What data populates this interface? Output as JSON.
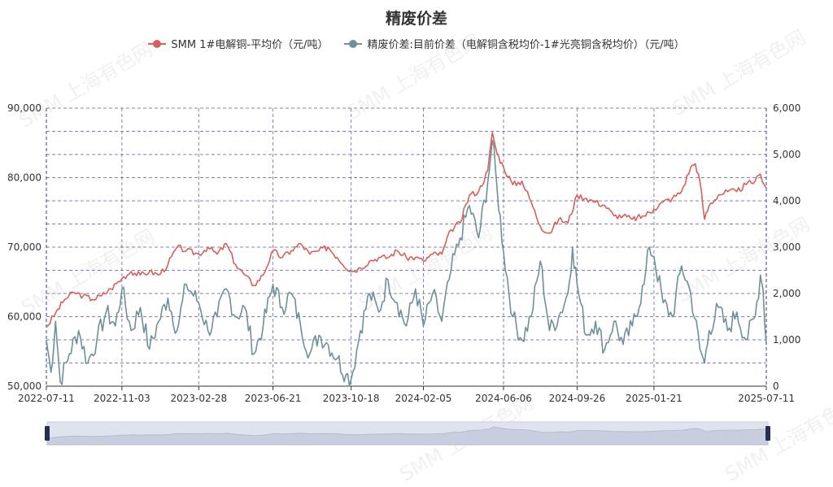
{
  "watermark": "SMM 上海有色网",
  "colors": {
    "series1": "#d85f5b",
    "series2": "#6f9098",
    "grid": "#555a8c",
    "dz_fill": "#dfe3ee",
    "dz_handle": "#26304e"
  },
  "chart_data": {
    "type": "line",
    "title": "精废价差",
    "x_labels": [
      "2022-07-11",
      "2022-11-03",
      "2023-02-28",
      "2023-06-21",
      "2023-10-18",
      "2024-02-05",
      "2024-06-06",
      "2024-09-26",
      "2025-01-21",
      "2025-07-11"
    ],
    "y_left": {
      "min": 50000,
      "max": 90000,
      "ticks": [
        "50,000",
        "60,000",
        "70,000",
        "80,000",
        "90,000"
      ]
    },
    "y_right": {
      "min": 0,
      "max": 6000,
      "ticks": [
        "0",
        "1,000",
        "2,000",
        "3,000",
        "4,000",
        "5,000",
        "6,000"
      ]
    },
    "grid": true,
    "legend_position": "top-center",
    "series": [
      {
        "name": "SMM 1#电解铜-平均价（元/吨）",
        "axis": "left",
        "points": [
          [
            "2022-07-11",
            58500
          ],
          [
            "2022-07-25",
            60500
          ],
          [
            "2022-08-08",
            62500
          ],
          [
            "2022-08-22",
            63500
          ],
          [
            "2022-09-05",
            63000
          ],
          [
            "2022-09-19",
            62500
          ],
          [
            "2022-10-03",
            63000
          ],
          [
            "2022-10-17",
            64000
          ],
          [
            "2022-11-03",
            65500
          ],
          [
            "2022-11-17",
            66500
          ],
          [
            "2022-12-01",
            66000
          ],
          [
            "2022-12-15",
            66500
          ],
          [
            "2022-12-29",
            66000
          ],
          [
            "2023-01-12",
            67500
          ],
          [
            "2023-01-26",
            70000
          ],
          [
            "2023-02-09",
            69500
          ],
          [
            "2023-02-28",
            69000
          ],
          [
            "2023-03-14",
            70000
          ],
          [
            "2023-03-28",
            69000
          ],
          [
            "2023-04-11",
            70500
          ],
          [
            "2023-04-25",
            67500
          ],
          [
            "2023-05-09",
            66000
          ],
          [
            "2023-05-23",
            64500
          ],
          [
            "2023-06-06",
            66000
          ],
          [
            "2023-06-21",
            69500
          ],
          [
            "2023-07-05",
            68500
          ],
          [
            "2023-07-19",
            69500
          ],
          [
            "2023-08-02",
            70500
          ],
          [
            "2023-08-16",
            69000
          ],
          [
            "2023-08-30",
            69500
          ],
          [
            "2023-09-13",
            70000
          ],
          [
            "2023-09-27",
            68500
          ],
          [
            "2023-10-18",
            66500
          ],
          [
            "2023-11-01",
            67000
          ],
          [
            "2023-11-15",
            68000
          ],
          [
            "2023-11-29",
            68500
          ],
          [
            "2023-12-13",
            68500
          ],
          [
            "2023-12-27",
            69500
          ],
          [
            "2024-01-10",
            68500
          ],
          [
            "2024-01-24",
            68500
          ],
          [
            "2024-02-05",
            68000
          ],
          [
            "2024-02-19",
            69000
          ],
          [
            "2024-03-04",
            69000
          ],
          [
            "2024-03-18",
            72500
          ],
          [
            "2024-04-01",
            73500
          ],
          [
            "2024-04-15",
            77500
          ],
          [
            "2024-04-29",
            78000
          ],
          [
            "2024-05-13",
            81000
          ],
          [
            "2024-05-20",
            86500
          ],
          [
            "2024-05-27",
            83500
          ],
          [
            "2024-06-06",
            81500
          ],
          [
            "2024-06-20",
            79000
          ],
          [
            "2024-07-04",
            79500
          ],
          [
            "2024-07-18",
            76500
          ],
          [
            "2024-08-01",
            73000
          ],
          [
            "2024-08-15",
            72000
          ],
          [
            "2024-08-29",
            74000
          ],
          [
            "2024-09-12",
            73500
          ],
          [
            "2024-09-26",
            77500
          ],
          [
            "2024-10-10",
            77000
          ],
          [
            "2024-10-24",
            76500
          ],
          [
            "2024-11-07",
            76000
          ],
          [
            "2024-11-21",
            74500
          ],
          [
            "2024-12-05",
            74500
          ],
          [
            "2024-12-19",
            74000
          ],
          [
            "2025-01-06",
            74500
          ],
          [
            "2025-01-21",
            75500
          ],
          [
            "2025-02-04",
            76500
          ],
          [
            "2025-02-18",
            77000
          ],
          [
            "2025-03-04",
            78000
          ],
          [
            "2025-03-18",
            81500
          ],
          [
            "2025-03-25",
            82000
          ],
          [
            "2025-04-01",
            79500
          ],
          [
            "2025-04-08",
            74000
          ],
          [
            "2025-04-15",
            76000
          ],
          [
            "2025-04-29",
            77500
          ],
          [
            "2025-05-13",
            78000
          ],
          [
            "2025-05-27",
            78000
          ],
          [
            "2025-06-10",
            79000
          ],
          [
            "2025-06-24",
            79500
          ],
          [
            "2025-07-02",
            80500
          ],
          [
            "2025-07-11",
            78500
          ]
        ]
      },
      {
        "name": "精废价差:目前价差（电解铜含税均价-1#光亮铜含税均价）（元/吨）",
        "axis": "right",
        "points": [
          [
            "2022-07-11",
            1000
          ],
          [
            "2022-07-18",
            300
          ],
          [
            "2022-07-25",
            1400
          ],
          [
            "2022-08-01",
            100
          ],
          [
            "2022-08-15",
            700
          ],
          [
            "2022-08-29",
            1200
          ],
          [
            "2022-09-12",
            500
          ],
          [
            "2022-09-26",
            1000
          ],
          [
            "2022-10-10",
            1600
          ],
          [
            "2022-10-24",
            1300
          ],
          [
            "2022-11-03",
            2100
          ],
          [
            "2022-11-17",
            1200
          ],
          [
            "2022-12-01",
            1700
          ],
          [
            "2022-12-15",
            800
          ],
          [
            "2022-12-29",
            1400
          ],
          [
            "2023-01-12",
            1900
          ],
          [
            "2023-01-26",
            1200
          ],
          [
            "2023-02-09",
            2200
          ],
          [
            "2023-02-28",
            1800
          ],
          [
            "2023-03-14",
            1200
          ],
          [
            "2023-03-28",
            1500
          ],
          [
            "2023-04-11",
            2100
          ],
          [
            "2023-04-25",
            1500
          ],
          [
            "2023-05-09",
            1700
          ],
          [
            "2023-05-23",
            700
          ],
          [
            "2023-06-06",
            1300
          ],
          [
            "2023-06-21",
            2200
          ],
          [
            "2023-07-05",
            1700
          ],
          [
            "2023-07-19",
            2000
          ],
          [
            "2023-08-02",
            1300
          ],
          [
            "2023-08-16",
            700
          ],
          [
            "2023-08-30",
            1100
          ],
          [
            "2023-09-13",
            900
          ],
          [
            "2023-09-27",
            600
          ],
          [
            "2023-10-10",
            250
          ],
          [
            "2023-10-18",
            150
          ],
          [
            "2023-11-01",
            1200
          ],
          [
            "2023-11-15",
            2000
          ],
          [
            "2023-11-29",
            1600
          ],
          [
            "2023-12-13",
            2300
          ],
          [
            "2023-12-27",
            1800
          ],
          [
            "2024-01-10",
            1300
          ],
          [
            "2024-01-24",
            2100
          ],
          [
            "2024-02-05",
            1300
          ],
          [
            "2024-02-19",
            2000
          ],
          [
            "2024-03-04",
            1400
          ],
          [
            "2024-03-18",
            2500
          ],
          [
            "2024-04-01",
            3200
          ],
          [
            "2024-04-15",
            3900
          ],
          [
            "2024-04-29",
            3200
          ],
          [
            "2024-05-13",
            4400
          ],
          [
            "2024-05-20",
            5300
          ],
          [
            "2024-05-27",
            4300
          ],
          [
            "2024-06-06",
            2900
          ],
          [
            "2024-06-20",
            1500
          ],
          [
            "2024-07-04",
            1000
          ],
          [
            "2024-07-18",
            1500
          ],
          [
            "2024-08-01",
            2700
          ],
          [
            "2024-08-15",
            1200
          ],
          [
            "2024-08-29",
            1500
          ],
          [
            "2024-09-12",
            2000
          ],
          [
            "2024-09-19",
            3000
          ],
          [
            "2024-09-26",
            2200
          ],
          [
            "2024-10-10",
            1100
          ],
          [
            "2024-10-24",
            1400
          ],
          [
            "2024-11-07",
            800
          ],
          [
            "2024-11-21",
            1400
          ],
          [
            "2024-12-05",
            900
          ],
          [
            "2024-12-19",
            1300
          ],
          [
            "2025-01-06",
            2200
          ],
          [
            "2025-01-14",
            3000
          ],
          [
            "2025-01-21",
            2800
          ],
          [
            "2025-02-04",
            1800
          ],
          [
            "2025-02-18",
            1500
          ],
          [
            "2025-03-04",
            2600
          ],
          [
            "2025-03-18",
            2000
          ],
          [
            "2025-04-01",
            800
          ],
          [
            "2025-04-08",
            500
          ],
          [
            "2025-04-15",
            1200
          ],
          [
            "2025-04-29",
            1700
          ],
          [
            "2025-05-13",
            1200
          ],
          [
            "2025-05-27",
            1600
          ],
          [
            "2025-06-10",
            1000
          ],
          [
            "2025-06-24",
            1500
          ],
          [
            "2025-07-02",
            2400
          ],
          [
            "2025-07-06",
            2100
          ],
          [
            "2025-07-11",
            900
          ]
        ]
      }
    ]
  }
}
